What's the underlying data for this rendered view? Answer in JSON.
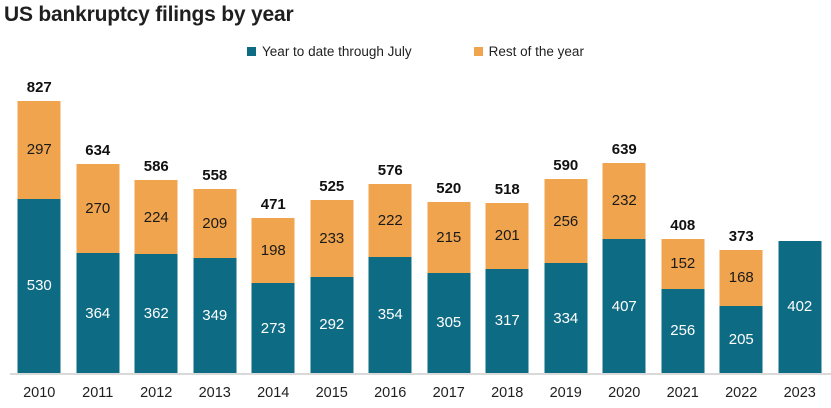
{
  "title": "US bankruptcy filings by year",
  "colors": {
    "ytd": "#0e6b84",
    "rest": "#f0a44d",
    "axis_line": "#d9d9d9",
    "total_label": "#111111",
    "ytd_label": "#ffffff",
    "rest_label": "#1a1a1a"
  },
  "legend": {
    "items": [
      {
        "label": "Year to date through July",
        "color": "#0e6b84"
      },
      {
        "label": "Rest of the year",
        "color": "#f0a44d"
      }
    ]
  },
  "chart_data": {
    "type": "bar",
    "stacked": true,
    "title": "US bankruptcy filings by year",
    "xlabel": "",
    "ylabel": "",
    "ylim": [
      0,
      827
    ],
    "grid": false,
    "legend_position": "top",
    "categories": [
      "2010",
      "2011",
      "2012",
      "2013",
      "2014",
      "2015",
      "2016",
      "2017",
      "2018",
      "2019",
      "2020",
      "2021",
      "2022",
      "2023"
    ],
    "series": [
      {
        "name": "Year to date through July",
        "color": "#0e6b84",
        "values": [
          530,
          364,
          362,
          349,
          273,
          292,
          354,
          305,
          317,
          334,
          407,
          256,
          205,
          402
        ]
      },
      {
        "name": "Rest of the year",
        "color": "#f0a44d",
        "values": [
          297,
          270,
          224,
          209,
          198,
          233,
          222,
          215,
          201,
          256,
          232,
          152,
          168,
          0
        ]
      }
    ],
    "totals": [
      827,
      634,
      586,
      558,
      471,
      525,
      576,
      520,
      518,
      590,
      639,
      408,
      373,
      null
    ]
  }
}
